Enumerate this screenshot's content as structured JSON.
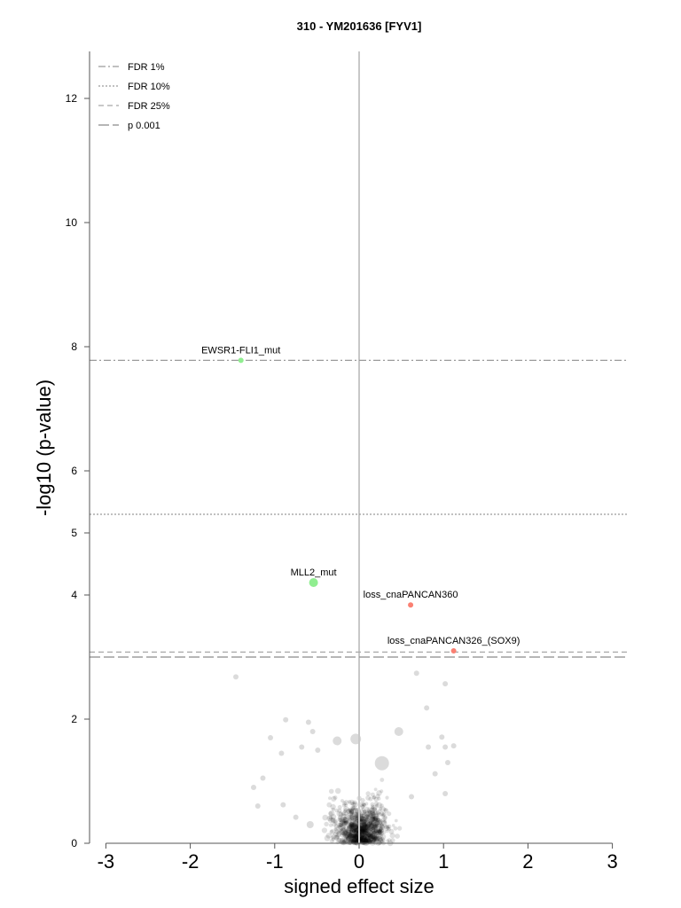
{
  "chart_data": {
    "type": "scatter",
    "title": "310 - YM201636 [FYV1]",
    "xlabel": "signed effect size",
    "ylabel": "-log10 (p-value)",
    "xlim": [
      -3.2,
      3.2
    ],
    "ylim": [
      0,
      12.8
    ],
    "xticks": [
      -3,
      -2,
      -1,
      0,
      1,
      2,
      3
    ],
    "xtick_labels": [
      "-3",
      "-2",
      "-1",
      "0",
      "1",
      "2",
      "3"
    ],
    "yticks": [
      0,
      2,
      4,
      5,
      6,
      8,
      10,
      12
    ],
    "ytick_labels": [
      "0",
      "2",
      "4",
      "5",
      "6",
      "8",
      "10",
      "12"
    ],
    "grid": false,
    "legend": {
      "placement": "top-left",
      "entries": [
        {
          "label": "FDR 1%",
          "style": "dash-dot"
        },
        {
          "label": "FDR 10%",
          "style": "dotted"
        },
        {
          "label": "FDR 25%",
          "style": "dashed"
        },
        {
          "label": "p 0.001",
          "style": "long-dashed"
        }
      ]
    },
    "threshold_lines": [
      {
        "name": "FDR 1%",
        "y": 7.78,
        "style": "dash-dot"
      },
      {
        "name": "FDR 10%",
        "y": 5.3,
        "style": "dotted"
      },
      {
        "name": "FDR 25%",
        "y": 3.08,
        "style": "dashed"
      },
      {
        "name": "p 0.001",
        "y": 3.0,
        "style": "long-dashed"
      }
    ],
    "highlighted_points": [
      {
        "label": "EWSR1-FLI1_mut",
        "x": -1.4,
        "y": 7.78,
        "size": 3,
        "color": "#90ee90"
      },
      {
        "label": "MLL2_mut",
        "x": -0.54,
        "y": 4.2,
        "size": 5,
        "color": "#90ee90"
      },
      {
        "label": "loss_cnaPANCAN360",
        "x": 0.61,
        "y": 3.84,
        "size": 3,
        "color": "#fa8072"
      },
      {
        "label": "loss_cnaPANCAN326_(SOX9)",
        "x": 1.12,
        "y": 3.1,
        "size": 3,
        "color": "#fa8072"
      }
    ],
    "background_points": [
      {
        "x": -1.46,
        "y": 2.68,
        "size": 3
      },
      {
        "x": 0.68,
        "y": 2.74,
        "size": 3
      },
      {
        "x": 1.02,
        "y": 2.57,
        "size": 3
      },
      {
        "x": 0.8,
        "y": 2.18,
        "size": 3
      },
      {
        "x": -0.87,
        "y": 1.99,
        "size": 3
      },
      {
        "x": -0.6,
        "y": 1.95,
        "size": 3
      },
      {
        "x": -1.05,
        "y": 1.7,
        "size": 3
      },
      {
        "x": -0.55,
        "y": 1.8,
        "size": 3
      },
      {
        "x": -0.26,
        "y": 1.65,
        "size": 5
      },
      {
        "x": -0.04,
        "y": 1.68,
        "size": 6
      },
      {
        "x": 0.47,
        "y": 1.8,
        "size": 5
      },
      {
        "x": 0.98,
        "y": 1.71,
        "size": 3
      },
      {
        "x": 1.02,
        "y": 1.55,
        "size": 3
      },
      {
        "x": 0.82,
        "y": 1.55,
        "size": 3
      },
      {
        "x": 1.12,
        "y": 1.57,
        "size": 3
      },
      {
        "x": 0.27,
        "y": 1.29,
        "size": 8
      },
      {
        "x": -0.49,
        "y": 1.5,
        "size": 3
      },
      {
        "x": -0.68,
        "y": 1.55,
        "size": 3
      },
      {
        "x": -0.92,
        "y": 1.45,
        "size": 3
      },
      {
        "x": -1.14,
        "y": 1.05,
        "size": 3
      },
      {
        "x": -1.25,
        "y": 0.9,
        "size": 3
      },
      {
        "x": -1.2,
        "y": 0.6,
        "size": 3
      },
      {
        "x": -0.9,
        "y": 0.62,
        "size": 3
      },
      {
        "x": -0.75,
        "y": 0.42,
        "size": 3
      },
      {
        "x": -0.58,
        "y": 0.3,
        "size": 4
      },
      {
        "x": 0.05,
        "y": 0.2,
        "size": 4
      },
      {
        "x": 0.9,
        "y": 1.12,
        "size": 3
      },
      {
        "x": 1.05,
        "y": 1.3,
        "size": 3
      },
      {
        "x": 1.02,
        "y": 0.8,
        "size": 3
      },
      {
        "x": 0.62,
        "y": 0.75,
        "size": 3
      }
    ]
  }
}
